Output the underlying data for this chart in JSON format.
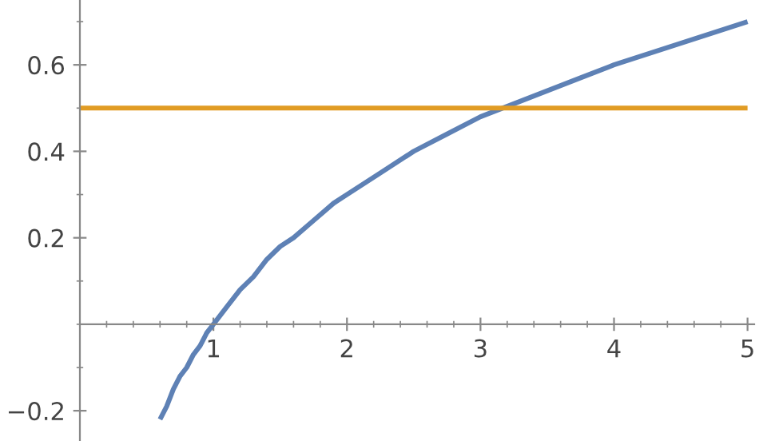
{
  "chart_data": {
    "type": "line",
    "series": [
      {
        "color": "#5e81b5",
        "x": [
          0.6,
          0.65,
          0.7,
          0.75,
          0.8,
          0.85,
          0.9,
          0.95,
          1.0,
          1.1,
          1.2,
          1.3,
          1.4,
          1.5,
          1.6,
          1.75,
          1.9,
          2.0,
          2.25,
          2.5,
          2.75,
          3.0,
          3.25,
          3.5,
          3.75,
          4.0,
          4.5,
          5.0
        ],
        "values": [
          -0.22,
          -0.19,
          -0.15,
          -0.12,
          -0.1,
          -0.07,
          -0.05,
          -0.02,
          0.0,
          0.04,
          0.08,
          0.11,
          0.15,
          0.18,
          0.2,
          0.24,
          0.28,
          0.3,
          0.35,
          0.4,
          0.44,
          0.48,
          0.51,
          0.54,
          0.57,
          0.6,
          0.65,
          0.7
        ]
      },
      {
        "color": "#e19c24",
        "x": [
          0.0,
          5.0
        ],
        "values": [
          0.5,
          0.5
        ]
      }
    ],
    "xlim": [
      0.0,
      5.05
    ],
    "ylim": [
      -0.27,
      0.75
    ],
    "xticks": [
      1,
      2,
      3,
      4,
      5
    ],
    "yticks": [
      -0.2,
      0.2,
      0.4,
      0.6
    ],
    "grid": false,
    "legend": false,
    "marker": "none",
    "line_style": "solid"
  }
}
